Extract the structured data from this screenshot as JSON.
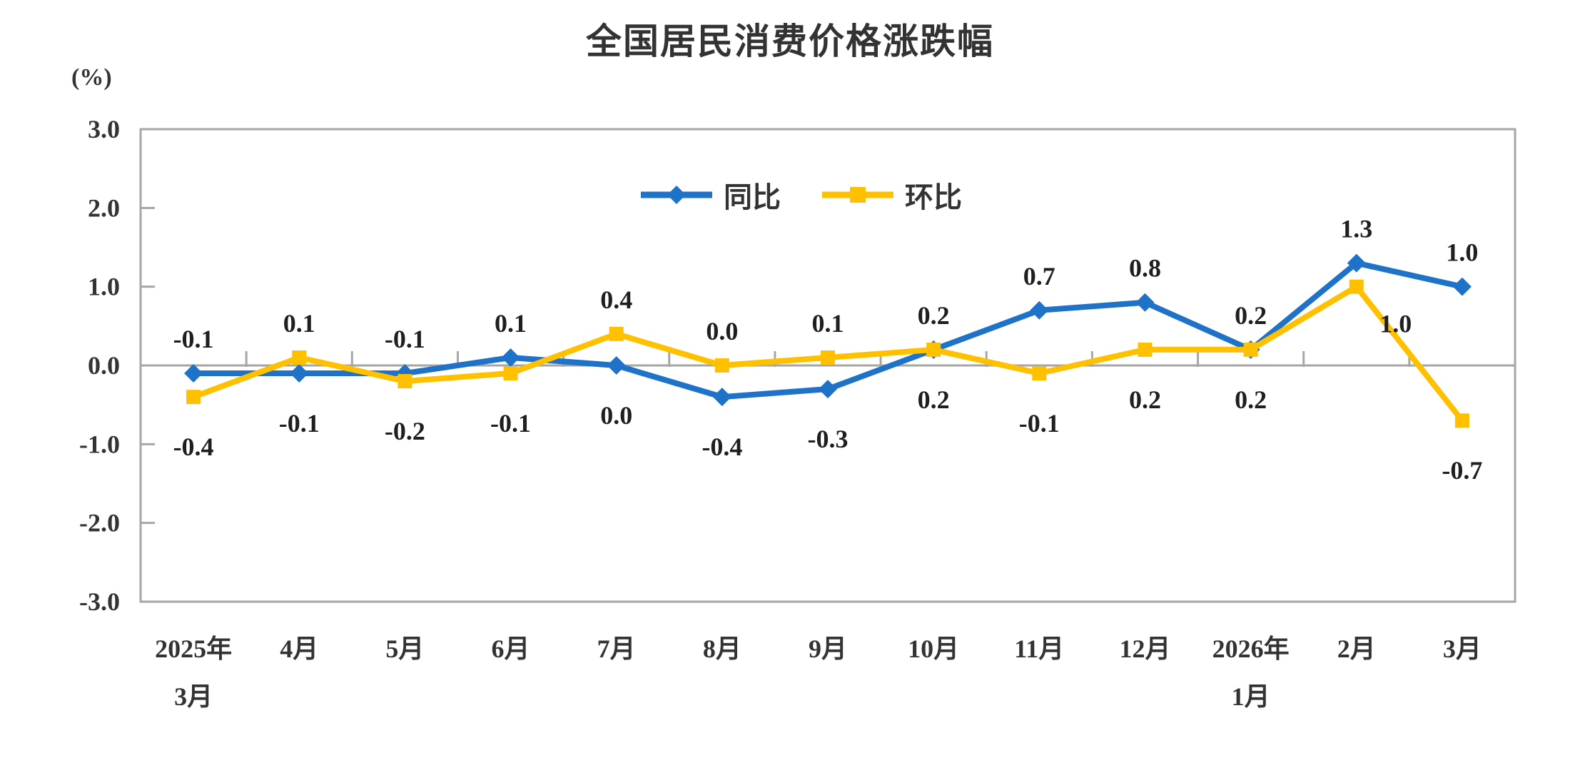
{
  "title": "全国居民消费价格涨跌幅",
  "y_axis": {
    "unit_label": "(%)",
    "tick_values": [
      3,
      2,
      1,
      0,
      -1,
      -2,
      -3
    ],
    "tick_labels": [
      "3.0",
      "2.0",
      "1.0",
      "0.0",
      "-1.0",
      "-2.0",
      "-3.0"
    ]
  },
  "colors": {
    "axis": "#A6A6A6",
    "text": "#333333",
    "data_label": "#1F1F1F",
    "yoy_blue": "#1E73C8",
    "mom_yellow": "#FFC000",
    "background": "#FFFFFF"
  },
  "chart_data": {
    "type": "line",
    "title": "全国居民消费价格涨跌幅",
    "ylabel": "(%)",
    "ylim": [
      -3.0,
      3.0
    ],
    "y_tick_step": 1.0,
    "grid": false,
    "legend_position": "top-center",
    "categories": [
      "2025年3月",
      "4月",
      "5月",
      "6月",
      "7月",
      "8月",
      "9月",
      "10月",
      "11月",
      "12月",
      "2026年1月",
      "2月",
      "3月"
    ],
    "series": [
      {
        "name": "同比",
        "color": "#1E73C8",
        "marker": "diamond",
        "values": [
          -0.1,
          -0.1,
          -0.1,
          0.1,
          0.0,
          -0.4,
          -0.3,
          0.2,
          0.7,
          0.8,
          0.2,
          1.3,
          1.0
        ],
        "label_pos": [
          "above",
          "below",
          "above",
          "above",
          "below",
          "below",
          "below",
          "above",
          "above",
          "above",
          "above",
          "above",
          "above"
        ]
      },
      {
        "name": "环比",
        "color": "#FFC000",
        "marker": "square",
        "values": [
          -0.4,
          0.1,
          -0.2,
          -0.1,
          0.4,
          0.0,
          0.1,
          0.2,
          -0.1,
          0.2,
          0.2,
          1.0,
          -0.7
        ],
        "label_pos": [
          "below",
          "above",
          "below",
          "below",
          "above",
          "above",
          "above",
          "below",
          "below",
          "below",
          "below",
          "below-right",
          "below"
        ]
      }
    ]
  }
}
